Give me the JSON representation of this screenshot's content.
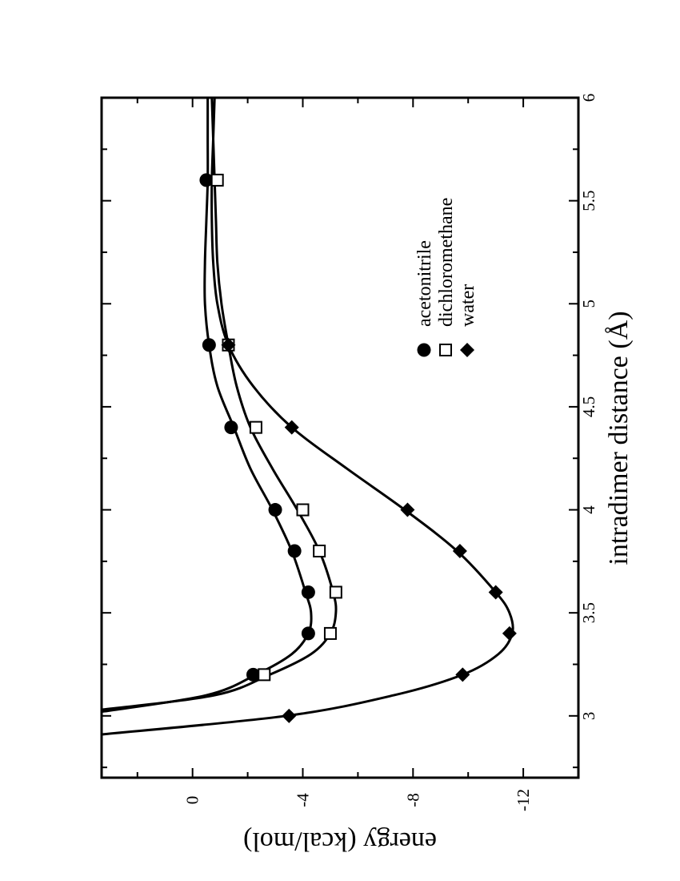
{
  "chart_data": {
    "type": "line",
    "xlabel": "intradimer distance (Å)",
    "ylabel": "energy (kcal/mol)",
    "xlim": [
      2.7,
      6.0
    ],
    "ylim": [
      -14,
      3.3
    ],
    "x_ticks": [
      {
        "value": 3,
        "label": "3"
      },
      {
        "value": 3.5,
        "label": "3.5"
      },
      {
        "value": 4,
        "label": "4"
      },
      {
        "value": 4.5,
        "label": "4.5"
      },
      {
        "value": 5,
        "label": "5"
      },
      {
        "value": 5.5,
        "label": "5.5"
      },
      {
        "value": 6,
        "label": "6"
      }
    ],
    "y_ticks": [
      {
        "value": 0,
        "label": "0"
      },
      {
        "value": -4,
        "label": "-4"
      },
      {
        "value": -8,
        "label": "-8"
      },
      {
        "value": -12,
        "label": "-12"
      }
    ],
    "orientation": "rotated 90° counter-clockwise",
    "legend_position": "upper-right",
    "grid": false,
    "series": [
      {
        "name": "acetonitrile",
        "marker": "filled-circle",
        "points": [
          [
            3.2,
            -2.2
          ],
          [
            3.4,
            -4.2
          ],
          [
            3.6,
            -4.2
          ],
          [
            3.8,
            -3.7
          ],
          [
            4.0,
            -3.0
          ],
          [
            4.4,
            -1.4
          ],
          [
            4.8,
            -0.6
          ],
          [
            5.6,
            -0.5
          ]
        ],
        "curve": [
          [
            3.02,
            3.3
          ],
          [
            3.1,
            -0.5
          ],
          [
            3.2,
            -2.3
          ],
          [
            3.3,
            -3.6
          ],
          [
            3.4,
            -4.2
          ],
          [
            3.5,
            -4.3
          ],
          [
            3.6,
            -4.1
          ],
          [
            3.8,
            -3.6
          ],
          [
            4.0,
            -2.9
          ],
          [
            4.2,
            -2.1
          ],
          [
            4.4,
            -1.5
          ],
          [
            4.6,
            -0.9
          ],
          [
            4.8,
            -0.6
          ],
          [
            5.0,
            -0.45
          ],
          [
            5.2,
            -0.45
          ],
          [
            5.4,
            -0.5
          ],
          [
            5.6,
            -0.55
          ],
          [
            5.8,
            -0.55
          ],
          [
            6.0,
            -0.55
          ]
        ]
      },
      {
        "name": "dichloromethane",
        "marker": "open-square",
        "points": [
          [
            3.2,
            -2.6
          ],
          [
            3.4,
            -5.0
          ],
          [
            3.6,
            -5.2
          ],
          [
            3.8,
            -4.6
          ],
          [
            4.0,
            -4.0
          ],
          [
            4.4,
            -2.3
          ],
          [
            4.8,
            -1.3
          ],
          [
            5.6,
            -0.9
          ]
        ],
        "curve": [
          [
            3.03,
            3.3
          ],
          [
            3.1,
            -0.8
          ],
          [
            3.2,
            -2.8
          ],
          [
            3.3,
            -4.3
          ],
          [
            3.4,
            -5.0
          ],
          [
            3.5,
            -5.2
          ],
          [
            3.6,
            -5.1
          ],
          [
            3.8,
            -4.6
          ],
          [
            4.0,
            -3.8
          ],
          [
            4.2,
            -2.9
          ],
          [
            4.4,
            -2.1
          ],
          [
            4.6,
            -1.6
          ],
          [
            4.8,
            -1.3
          ],
          [
            5.0,
            -1.05
          ],
          [
            5.2,
            -0.9
          ],
          [
            5.4,
            -0.85
          ],
          [
            5.6,
            -0.8
          ],
          [
            5.8,
            -0.75
          ],
          [
            6.0,
            -0.7
          ]
        ]
      },
      {
        "name": "water",
        "marker": "filled-diamond",
        "points": [
          [
            3.0,
            -3.5
          ],
          [
            3.2,
            -9.8
          ],
          [
            3.4,
            -11.5
          ],
          [
            3.6,
            -11.0
          ],
          [
            3.8,
            -9.7
          ],
          [
            4.0,
            -7.8
          ],
          [
            4.4,
            -3.6
          ],
          [
            4.8,
            -1.3
          ]
        ],
        "curve": [
          [
            2.91,
            3.3
          ],
          [
            3.0,
            -3.4
          ],
          [
            3.1,
            -7.3
          ],
          [
            3.2,
            -9.8
          ],
          [
            3.3,
            -11.1
          ],
          [
            3.4,
            -11.6
          ],
          [
            3.5,
            -11.5
          ],
          [
            3.6,
            -11.0
          ],
          [
            3.8,
            -9.6
          ],
          [
            4.0,
            -7.7
          ],
          [
            4.2,
            -5.6
          ],
          [
            4.4,
            -3.6
          ],
          [
            4.6,
            -2.2
          ],
          [
            4.8,
            -1.3
          ],
          [
            5.0,
            -0.9
          ],
          [
            5.2,
            -0.75
          ],
          [
            5.4,
            -0.7
          ],
          [
            5.6,
            -0.7
          ],
          [
            5.8,
            -0.75
          ],
          [
            6.0,
            -0.8
          ]
        ]
      }
    ]
  }
}
